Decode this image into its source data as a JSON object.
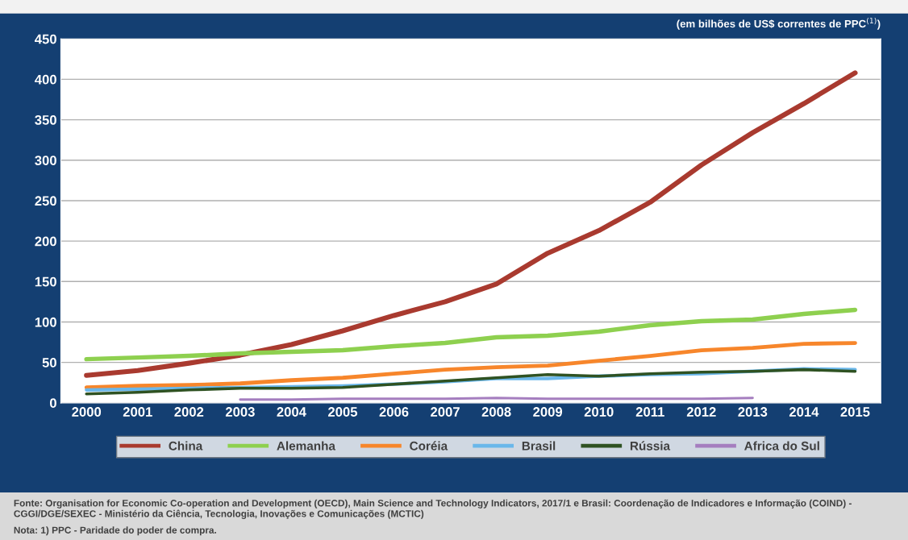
{
  "chart_data": {
    "type": "line",
    "subtitle": "(em bilhões de US$ correntes de PPC$^{(1)}$)",
    "categories": [
      "2000",
      "2001",
      "2002",
      "2003",
      "2004",
      "2005",
      "2006",
      "2007",
      "2008",
      "2009",
      "2010",
      "2011",
      "2012",
      "2013",
      "2014",
      "2015"
    ],
    "series": [
      {
        "name": "China",
        "color": "#a93a2f",
        "values": [
          34,
          40,
          49,
          59,
          72,
          89,
          108,
          125,
          147,
          185,
          213,
          248,
          294,
          334,
          370,
          408
        ]
      },
      {
        "name": "Alemanha",
        "color": "#8ed04f",
        "values": [
          54,
          56,
          58,
          61,
          63,
          65,
          70,
          74,
          81,
          83,
          88,
          96,
          101,
          103,
          110,
          115
        ]
      },
      {
        "name": "Coréia",
        "color": "#f7862b",
        "values": [
          19,
          21,
          22,
          24,
          28,
          31,
          36,
          41,
          44,
          46,
          52,
          58,
          65,
          68,
          73,
          74
        ]
      },
      {
        "name": "Brasil",
        "color": "#6ab7ea",
        "values": [
          16,
          17,
          18,
          19,
          20,
          21,
          23,
          26,
          30,
          30,
          33,
          35,
          36,
          39,
          42,
          41
        ]
      },
      {
        "name": "Rússia",
        "color": "#2f5222",
        "values": [
          11,
          13,
          16,
          18,
          18,
          19,
          23,
          27,
          31,
          35,
          33,
          36,
          38,
          39,
          41,
          39
        ]
      },
      {
        "name": "Africa do Sul",
        "color": "#a57ebf",
        "values": [
          null,
          null,
          null,
          4,
          4,
          5,
          5,
          5,
          6,
          5,
          5,
          5,
          5,
          6,
          null,
          null
        ]
      }
    ],
    "ylim": [
      0,
      450
    ],
    "yticks": [
      0,
      50,
      100,
      150,
      200,
      250,
      300,
      350,
      400,
      450
    ],
    "grid": "y",
    "legend": "bottom",
    "marker": "none",
    "line_style": "solid",
    "annotations": [
      "Fonte: Organisation for Economic Co-operation and Development (OECD), Main Science and Technology Indicators, 2017/1 e Brasil: Coordenação de Indicadores e Informação (COIND) - CGGI/DGE/SEXEC - Ministério da Ciência, Tecnologia, Inovações e Comunicações (MCTIC)",
      "Nota: 1) PPC - Paridade do poder de compra."
    ]
  }
}
